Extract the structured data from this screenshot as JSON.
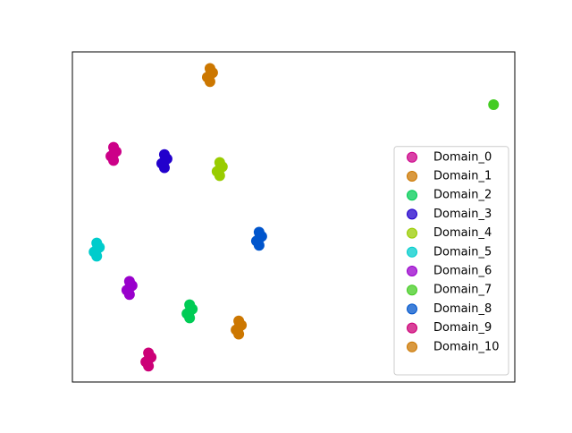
{
  "chart_data": {
    "type": "scatter",
    "legend": "lower right",
    "xlim": [
      0,
      100
    ],
    "ylim": [
      0,
      100
    ],
    "series": [
      {
        "name": "Domain_0",
        "color": "#cc0088",
        "x": [
          9.3,
          8.7,
          9.9,
          9.3,
          9.3
        ],
        "y": [
          67.1,
          68.4,
          69.8,
          71.1,
          69.1
        ]
      },
      {
        "name": "Domain_1",
        "color": "#cc7700",
        "x": [
          31.1,
          30.5,
          31.7,
          31.1,
          31.1
        ],
        "y": [
          91.0,
          92.3,
          93.7,
          95.0,
          93.0
        ]
      },
      {
        "name": "Domain_2",
        "color": "#00cc55",
        "x": [
          26.5,
          25.9,
          27.1,
          26.5,
          26.5
        ],
        "y": [
          19.4,
          20.7,
          22.1,
          23.4,
          21.4
        ]
      },
      {
        "name": "Domain_3",
        "color": "#2200cc",
        "x": [
          20.8,
          20.2,
          21.4,
          20.8,
          20.8
        ],
        "y": [
          64.9,
          66.2,
          67.6,
          68.9,
          66.9
        ]
      },
      {
        "name": "Domain_4",
        "color": "#99cc00",
        "x": [
          33.3,
          32.7,
          33.9,
          33.3,
          33.3
        ],
        "y": [
          62.5,
          63.8,
          65.2,
          66.5,
          64.5
        ]
      },
      {
        "name": "Domain_5",
        "color": "#00cccc",
        "x": [
          5.5,
          4.9,
          6.1,
          5.5,
          5.5
        ],
        "y": [
          38.1,
          39.4,
          40.8,
          42.1,
          40.1
        ]
      },
      {
        "name": "Domain_6",
        "color": "#9900cc",
        "x": [
          12.9,
          12.3,
          13.5,
          12.9,
          12.9
        ],
        "y": [
          26.5,
          27.8,
          29.2,
          30.5,
          28.5
        ]
      },
      {
        "name": "Domain_7",
        "color": "#44cc22",
        "x": [
          95.2
        ],
        "y": [
          84.0
        ]
      },
      {
        "name": "Domain_8",
        "color": "#0055cc",
        "x": [
          42.2,
          41.6,
          42.8,
          42.2,
          42.2
        ],
        "y": [
          41.4,
          42.7,
          44.1,
          45.4,
          43.4
        ]
      },
      {
        "name": "Domain_9",
        "color": "#cc0077",
        "x": [
          17.2,
          16.6,
          17.8,
          17.2,
          17.2
        ],
        "y": [
          4.8,
          6.1,
          7.5,
          8.8,
          6.8
        ]
      },
      {
        "name": "Domain_10",
        "color": "#cc7700",
        "x": [
          37.6,
          37.0,
          38.2,
          37.6,
          37.6
        ],
        "y": [
          14.5,
          15.8,
          17.2,
          18.5,
          16.5
        ]
      }
    ]
  }
}
